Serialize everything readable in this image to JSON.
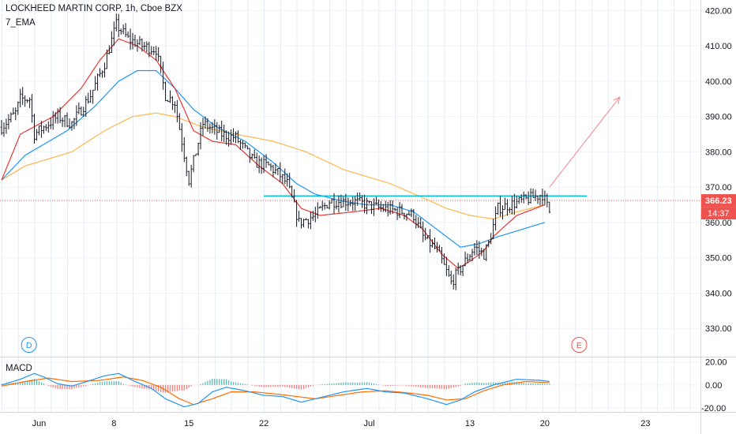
{
  "chart_title": "LOCKHEED MARTIN CORP, 1h, Cboe BZX",
  "indicator_label": "7_EMA",
  "chart_data": [
    {
      "type": "candlestick",
      "title": "LOCKHEED MARTIN CORP, 1h, Cboe BZX",
      "ylim": [
        322,
        423
      ],
      "y_ticks": [
        "420.00",
        "410.00",
        "400.00",
        "390.00",
        "380.00",
        "370.00",
        "360.00",
        "350.00",
        "340.00",
        "330.00"
      ],
      "y_tick_values": [
        420,
        410,
        400,
        390,
        380,
        370,
        360,
        350,
        340,
        330
      ],
      "x_ticks": [
        "Jun",
        "8",
        "15",
        "22",
        "Jul",
        "13",
        "20",
        "23"
      ],
      "x_tick_bars": [
        16,
        48,
        80,
        112,
        157,
        200,
        232,
        275
      ],
      "bar_count": 295,
      "last_price": "366.23",
      "last_price_value": 366.23,
      "countdown": "14:37",
      "colors": {
        "price": "#131722",
        "ema_fast": "#e53935",
        "ema_mid": "#2196f3",
        "ema_slow": "#ffb74d",
        "resistance": "#00bcd4",
        "arrow": "#f28b95",
        "marker": "#ef5350"
      },
      "price_path": [
        [
          0,
          387
        ],
        [
          6,
          391
        ],
        [
          8,
          395
        ],
        [
          12,
          395
        ],
        [
          14,
          385
        ],
        [
          18,
          387
        ],
        [
          24,
          390
        ],
        [
          30,
          388
        ],
        [
          38,
          396
        ],
        [
          44,
          405
        ],
        [
          49,
          416
        ],
        [
          54,
          412
        ],
        [
          60,
          410
        ],
        [
          66,
          409
        ],
        [
          70,
          396
        ],
        [
          74,
          394
        ],
        [
          80,
          372
        ],
        [
          86,
          388
        ],
        [
          94,
          385
        ],
        [
          100,
          384
        ],
        [
          108,
          377
        ],
        [
          114,
          376
        ],
        [
          118,
          374
        ],
        [
          122,
          371
        ],
        [
          127,
          360
        ],
        [
          134,
          362
        ],
        [
          140,
          366
        ],
        [
          150,
          366
        ],
        [
          162,
          364
        ],
        [
          172,
          363
        ],
        [
          176,
          362
        ],
        [
          180,
          356
        ],
        [
          186,
          352
        ],
        [
          192,
          343
        ],
        [
          197,
          348
        ],
        [
          202,
          353
        ],
        [
          206,
          351
        ],
        [
          208,
          354
        ],
        [
          212,
          364
        ],
        [
          222,
          366
        ],
        [
          231,
          368
        ],
        [
          234,
          363
        ]
      ],
      "ema_fast_path": [
        [
          0,
          372
        ],
        [
          8,
          385
        ],
        [
          22,
          390
        ],
        [
          34,
          398
        ],
        [
          42,
          406
        ],
        [
          50,
          412
        ],
        [
          58,
          410
        ],
        [
          66,
          406
        ],
        [
          74,
          398
        ],
        [
          82,
          386
        ],
        [
          90,
          383
        ],
        [
          100,
          382
        ],
        [
          110,
          376
        ],
        [
          120,
          371
        ],
        [
          128,
          364
        ],
        [
          136,
          362
        ],
        [
          150,
          363
        ],
        [
          162,
          364
        ],
        [
          172,
          362
        ],
        [
          180,
          358
        ],
        [
          188,
          351
        ],
        [
          195,
          347
        ],
        [
          200,
          349
        ],
        [
          206,
          352
        ],
        [
          210,
          356
        ],
        [
          220,
          362
        ],
        [
          232,
          365
        ]
      ],
      "ema_mid_path": [
        [
          0,
          372
        ],
        [
          10,
          379
        ],
        [
          28,
          386
        ],
        [
          40,
          393
        ],
        [
          50,
          400
        ],
        [
          58,
          403
        ],
        [
          66,
          403
        ],
        [
          74,
          398
        ],
        [
          82,
          392
        ],
        [
          92,
          387
        ],
        [
          104,
          383
        ],
        [
          116,
          377
        ],
        [
          126,
          371
        ],
        [
          134,
          368
        ],
        [
          146,
          366
        ],
        [
          156,
          365
        ],
        [
          166,
          365
        ],
        [
          176,
          363
        ],
        [
          186,
          358
        ],
        [
          196,
          353
        ],
        [
          204,
          354
        ],
        [
          212,
          356
        ],
        [
          222,
          358
        ],
        [
          232,
          360
        ]
      ],
      "ema_slow_path": [
        [
          0,
          372
        ],
        [
          10,
          376
        ],
        [
          30,
          380
        ],
        [
          44,
          386
        ],
        [
          56,
          390
        ],
        [
          66,
          391
        ],
        [
          74,
          390
        ],
        [
          86,
          387
        ],
        [
          100,
          385
        ],
        [
          116,
          383
        ],
        [
          130,
          380
        ],
        [
          146,
          375
        ],
        [
          166,
          371
        ],
        [
          180,
          367
        ],
        [
          190,
          364
        ],
        [
          200,
          362
        ],
        [
          210,
          361
        ],
        [
          220,
          363
        ],
        [
          232,
          365
        ]
      ],
      "resistance_line": {
        "value": 367.5,
        "from_bar": 112,
        "to_bar": 250
      },
      "projection_arrow": {
        "from": [
          234,
          370
        ],
        "to": [
          264,
          395.5
        ]
      },
      "event_markers": [
        "D",
        "E"
      ],
      "event_marker_bars": [
        10,
        245
      ]
    },
    {
      "type": "line",
      "title": "MACD",
      "ylim": [
        -23.4,
        24.6
      ],
      "y_ticks": [
        "20.00",
        "0.00",
        "-20.00"
      ],
      "y_tick_values": [
        20,
        0,
        -20
      ],
      "colors": {
        "macd": "#2196f3",
        "signal": "#ff6d00",
        "hist_pos": "#26a69a",
        "hist_neg": "#ef5350"
      },
      "macd_path": [
        [
          0,
          0
        ],
        [
          8,
          5
        ],
        [
          14,
          10
        ],
        [
          18,
          7
        ],
        [
          24,
          1
        ],
        [
          30,
          -1
        ],
        [
          38,
          4
        ],
        [
          44,
          8
        ],
        [
          50,
          10
        ],
        [
          56,
          4
        ],
        [
          64,
          -3
        ],
        [
          70,
          -12
        ],
        [
          78,
          -19
        ],
        [
          84,
          -16
        ],
        [
          90,
          -6
        ],
        [
          96,
          -2
        ],
        [
          104,
          -5
        ],
        [
          112,
          -9
        ],
        [
          120,
          -10
        ],
        [
          128,
          -15
        ],
        [
          136,
          -11
        ],
        [
          146,
          -6
        ],
        [
          156,
          -3
        ],
        [
          164,
          -6
        ],
        [
          172,
          -7
        ],
        [
          182,
          -12
        ],
        [
          190,
          -17
        ],
        [
          196,
          -13
        ],
        [
          202,
          -6
        ],
        [
          210,
          0
        ],
        [
          220,
          5
        ],
        [
          230,
          4
        ],
        [
          234,
          3
        ]
      ],
      "signal_path": [
        [
          0,
          -1
        ],
        [
          10,
          3
        ],
        [
          20,
          6
        ],
        [
          30,
          3
        ],
        [
          42,
          4
        ],
        [
          52,
          7
        ],
        [
          60,
          4
        ],
        [
          68,
          -2
        ],
        [
          76,
          -12
        ],
        [
          82,
          -17
        ],
        [
          90,
          -12
        ],
        [
          98,
          -6
        ],
        [
          108,
          -6
        ],
        [
          118,
          -8
        ],
        [
          126,
          -10
        ],
        [
          134,
          -12
        ],
        [
          144,
          -9
        ],
        [
          154,
          -6
        ],
        [
          164,
          -5
        ],
        [
          174,
          -7
        ],
        [
          182,
          -9
        ],
        [
          190,
          -13
        ],
        [
          198,
          -12
        ],
        [
          206,
          -5
        ],
        [
          214,
          0
        ],
        [
          224,
          3
        ],
        [
          234,
          2
        ]
      ]
    }
  ]
}
